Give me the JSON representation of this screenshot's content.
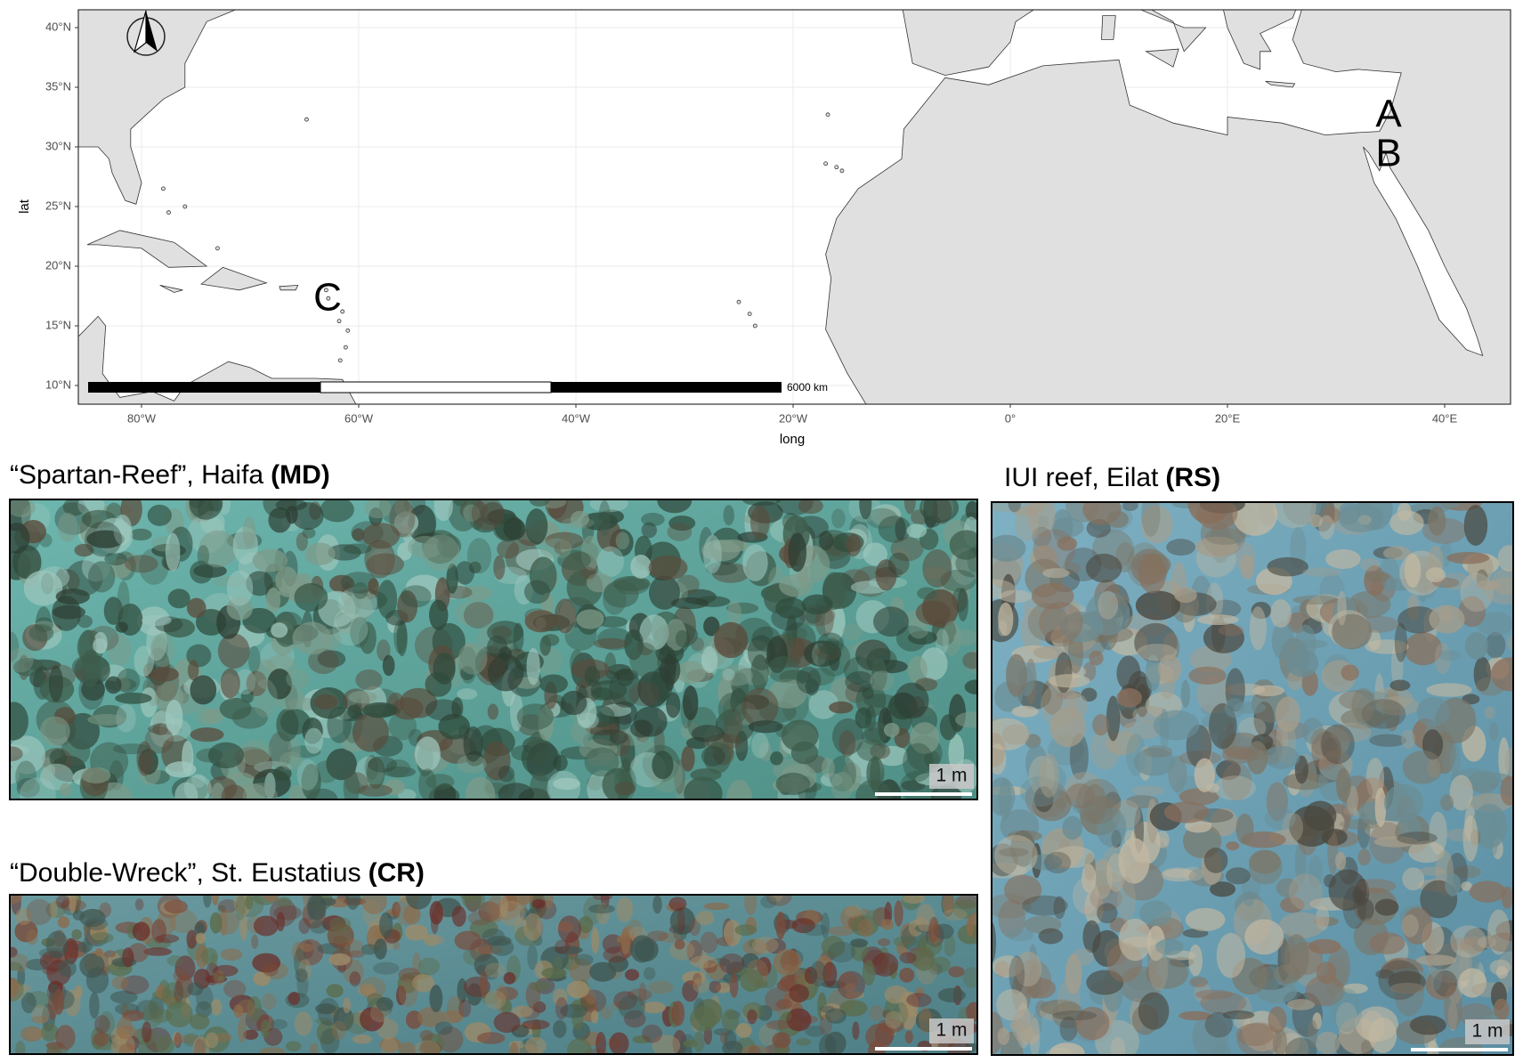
{
  "map": {
    "y_axis_label": "lat",
    "x_axis_label": "long",
    "lat_ticks": [
      "40°N",
      "35°N",
      "30°N",
      "25°N",
      "20°N",
      "15°N",
      "10°N"
    ],
    "long_ticks": [
      "80°W",
      "60°W",
      "40°W",
      "20°W",
      "0°",
      "20°E",
      "40°E"
    ],
    "sites": [
      "A",
      "B",
      "C"
    ],
    "scale_bar_label": "6000 km"
  },
  "panels": [
    {
      "title": "“Spartan-Reef”, Haifa",
      "code": "(MD)",
      "scale_label": "1 m"
    },
    {
      "title": "IUI reef, Eilat",
      "code": "(RS)",
      "scale_label": "1 m"
    },
    {
      "title": "“Double-Wreck”, St. Eustatius",
      "code": "(CR)",
      "scale_label": "1 m"
    }
  ]
}
